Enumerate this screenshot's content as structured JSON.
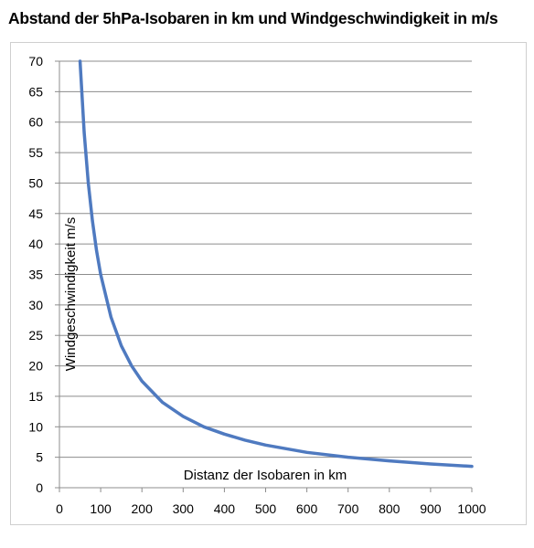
{
  "chart_data": {
    "type": "line",
    "title": "Abstand der 5hPa-Isobaren in km und Windgeschwindigkeit in m/s",
    "xlabel": "Distanz der Isobaren in km",
    "ylabel": "Windgeschwindigkeit m/s",
    "xlim": [
      0,
      1000
    ],
    "ylim": [
      0,
      70
    ],
    "x_ticks": [
      "0",
      "100",
      "200",
      "300",
      "400",
      "500",
      "600",
      "700",
      "800",
      "900",
      "1000"
    ],
    "y_ticks": [
      "0",
      "5",
      "10",
      "15",
      "20",
      "25",
      "30",
      "35",
      "40",
      "45",
      "50",
      "55",
      "60",
      "65",
      "70"
    ],
    "grid": "horizontal",
    "legend": "none",
    "line_color": "#4f7ac0",
    "series": [
      {
        "x": [
          50,
          60,
          70,
          80,
          90,
          100,
          125,
          150,
          175,
          200,
          250,
          300,
          350,
          400,
          450,
          500,
          600,
          700,
          800,
          900,
          1000
        ],
        "y": [
          70,
          58.3,
          50,
          43.8,
          38.9,
          35,
          28,
          23.3,
          20,
          17.5,
          14,
          11.7,
          10,
          8.8,
          7.8,
          7,
          5.8,
          5,
          4.4,
          3.9,
          3.5
        ]
      }
    ]
  }
}
